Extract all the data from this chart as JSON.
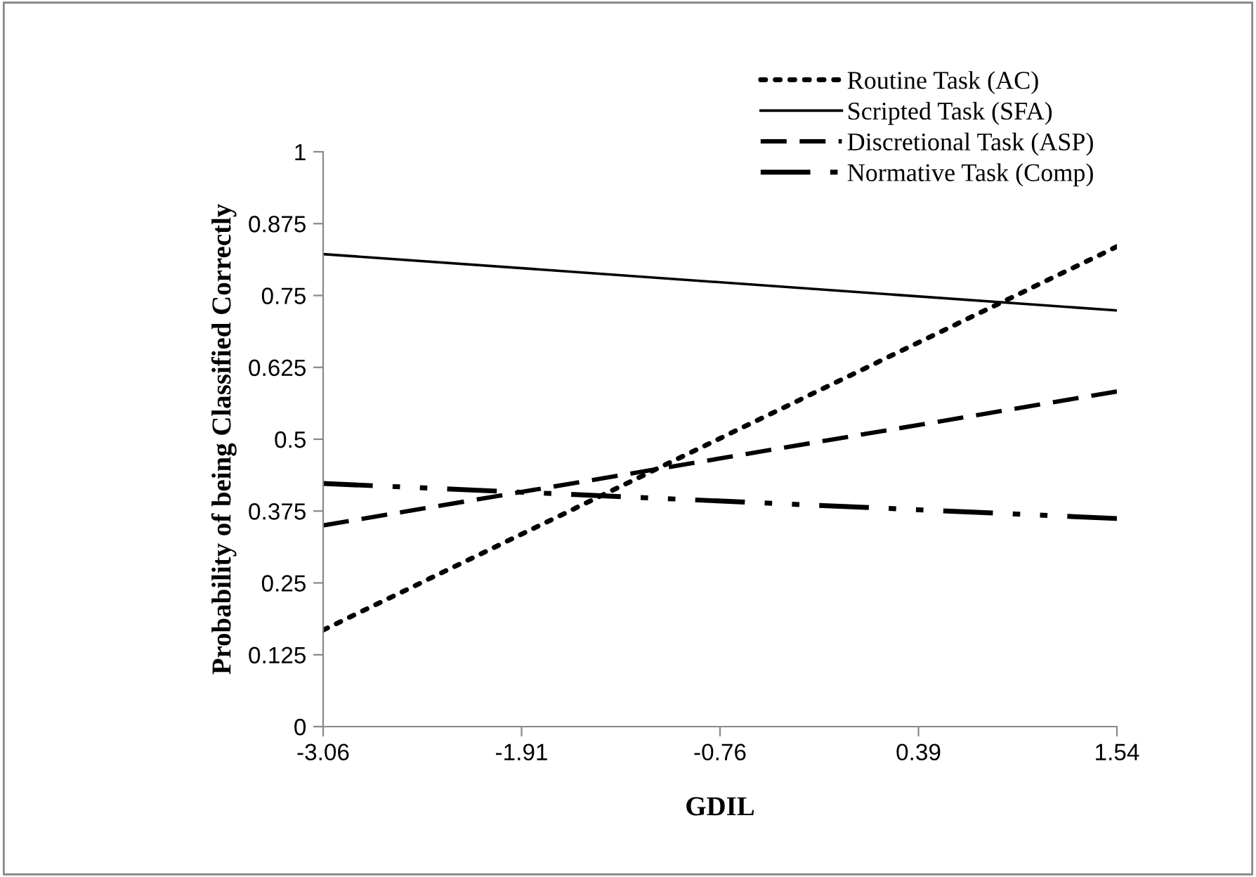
{
  "chart_data": {
    "type": "line",
    "xlabel": "GDIL",
    "ylabel": "Probability of being Classified Correctly",
    "x": [
      -3.06,
      1.54
    ],
    "series": [
      {
        "name": "Routine Task (AC)",
        "color": "#000000",
        "line_style": "dotted",
        "values": [
          0.168,
          0.835
        ]
      },
      {
        "name": "Scripted Task (SFA)",
        "color": "#000000",
        "line_style": "solid",
        "values": [
          0.822,
          0.724
        ]
      },
      {
        "name": "Discretional Task (ASP)",
        "color": "#000000",
        "line_style": "dashed",
        "values": [
          0.35,
          0.583
        ]
      },
      {
        "name": "Normative Task (Comp)",
        "color": "#000000",
        "line_style": "dashdotdot",
        "values": [
          0.423,
          0.362
        ]
      }
    ],
    "xlim": [
      -3.06,
      1.54
    ],
    "xticks": [
      -3.06,
      -1.91,
      -0.76,
      0.39,
      1.54
    ],
    "ylim": [
      0,
      1
    ],
    "yticks": [
      0,
      0.125,
      0.25,
      0.375,
      0.5,
      0.625,
      0.75,
      0.875,
      1
    ],
    "grid": false,
    "legend": "top right",
    "marker": "none"
  }
}
